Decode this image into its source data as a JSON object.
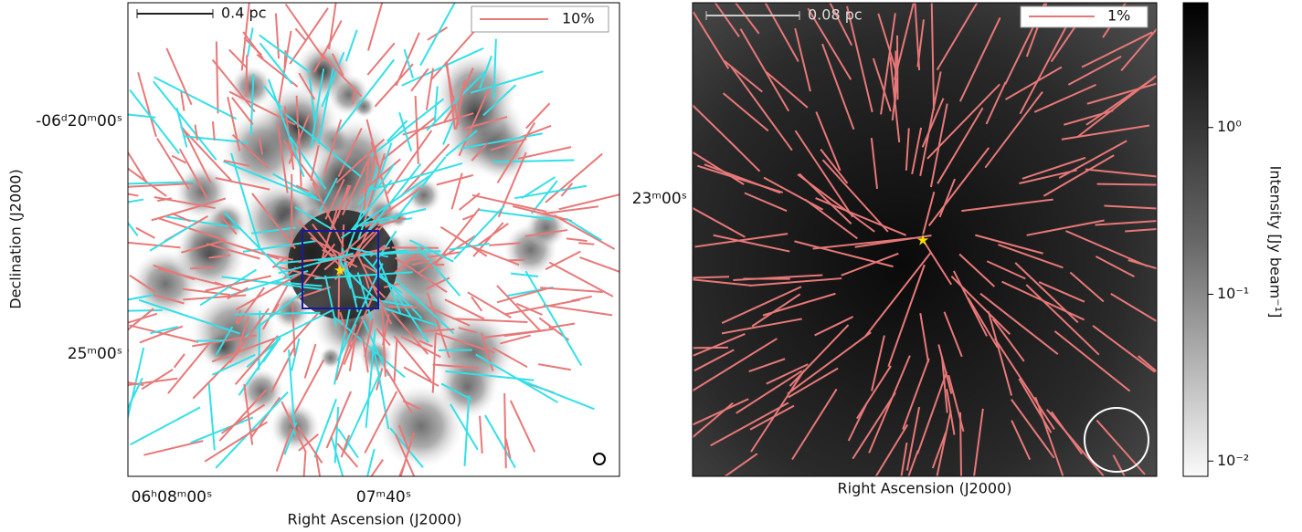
{
  "chart_data": [
    {
      "type": "polarization-map",
      "xlabel": "Right Ascension (J2000)",
      "ylabel": "Declination (J2000)",
      "xtick_labels": [
        "06ʰ08ᵐ00ˢ",
        "07ᵐ40ˢ"
      ],
      "ytick_labels": [
        "-06ᵈ20ᵐ00ˢ",
        "25ᵐ00ˢ"
      ],
      "scale_bar": "0.4 pc",
      "legend": "10%",
      "colors": [
        "#e87878",
        "#33e0e8"
      ]
    },
    {
      "type": "polarization-map",
      "xlabel": "Right Ascension (J2000)",
      "ytick_labels": [
        "23ᵐ00ˢ"
      ],
      "scale_bar": "0.08 pc",
      "legend": "1%",
      "colors": [
        "#e87878"
      ]
    },
    {
      "type": "colorbar",
      "label": "Intensity [Jy beam⁻¹]",
      "log": true,
      "ylim": [
        0.0081,
        5.6
      ],
      "yticks": [
        {
          "value": 1,
          "label": "10⁰"
        },
        {
          "value": 0.1,
          "label": "10⁻¹"
        },
        {
          "value": 0.01,
          "label": "10⁻²"
        }
      ]
    }
  ]
}
